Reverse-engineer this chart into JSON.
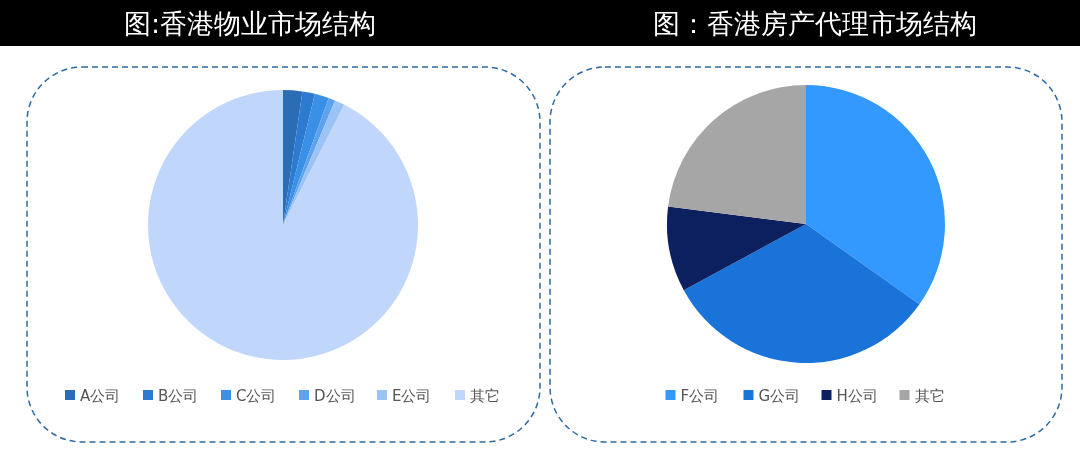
{
  "chart_data": [
    {
      "type": "pie",
      "title": "图:香港物业市场结构",
      "categories": [
        "A公司",
        "B公司",
        "C公司",
        "D公司",
        "E公司",
        "其它"
      ],
      "values": [
        2.3,
        1.5,
        1.7,
        0.8,
        1.2,
        92.5
      ],
      "colors": [
        "#2a6db5",
        "#2c7bd0",
        "#3a8fe6",
        "#5da2ef",
        "#9cc3f5",
        "#c0d6fa"
      ],
      "legend": "bottom"
    },
    {
      "type": "pie",
      "title": "图：香港房产代理市场结构",
      "categories": [
        "F公司",
        "G公司",
        "H公司",
        "其它"
      ],
      "values": [
        34.8,
        32.3,
        9.9,
        23.0
      ],
      "colors": [
        "#3399ff",
        "#1a73d9",
        "#0c1f5e",
        "#a6a6a6"
      ],
      "legend": "bottom"
    }
  ]
}
